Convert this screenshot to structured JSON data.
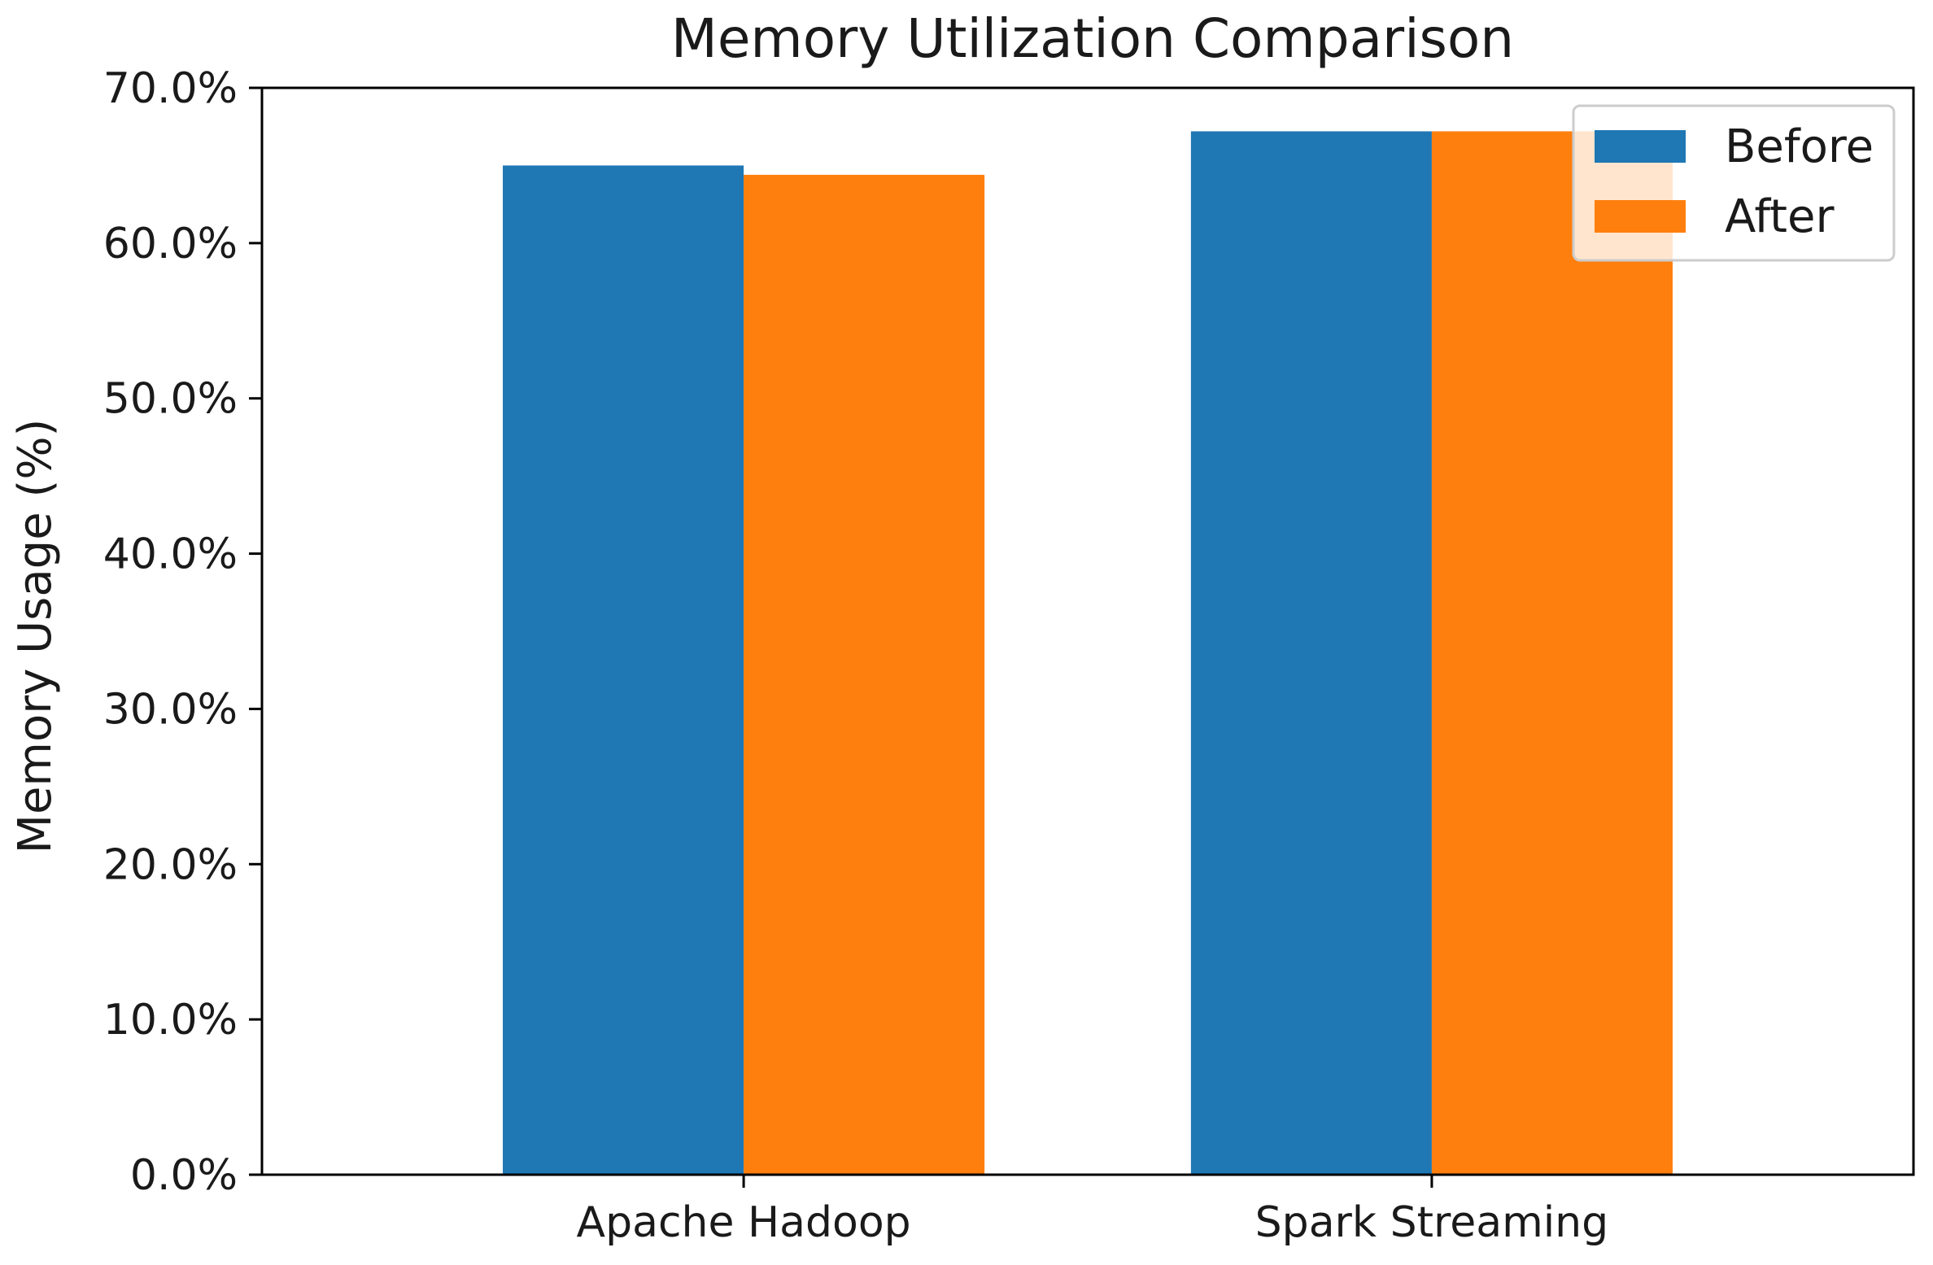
{
  "chart_data": {
    "type": "bar",
    "title": "Memory Utilization Comparison",
    "xlabel": "",
    "ylabel": "Memory Usage (%)",
    "categories": [
      "Apache Hadoop",
      "Spark Streaming"
    ],
    "series": [
      {
        "name": "Before",
        "color": "#1f77b4",
        "values": [
          65.0,
          67.2
        ]
      },
      {
        "name": "After",
        "color": "#ff7f0e",
        "values": [
          64.4,
          67.2
        ]
      }
    ],
    "ylim": [
      0,
      70
    ],
    "yticks": [
      0,
      10,
      20,
      30,
      40,
      50,
      60,
      70
    ],
    "ytick_labels": [
      "0.0%",
      "10.0%",
      "20.0%",
      "30.0%",
      "40.0%",
      "50.0%",
      "60.0%",
      "70.0%"
    ],
    "grid": false,
    "legend_position": "upper right"
  }
}
